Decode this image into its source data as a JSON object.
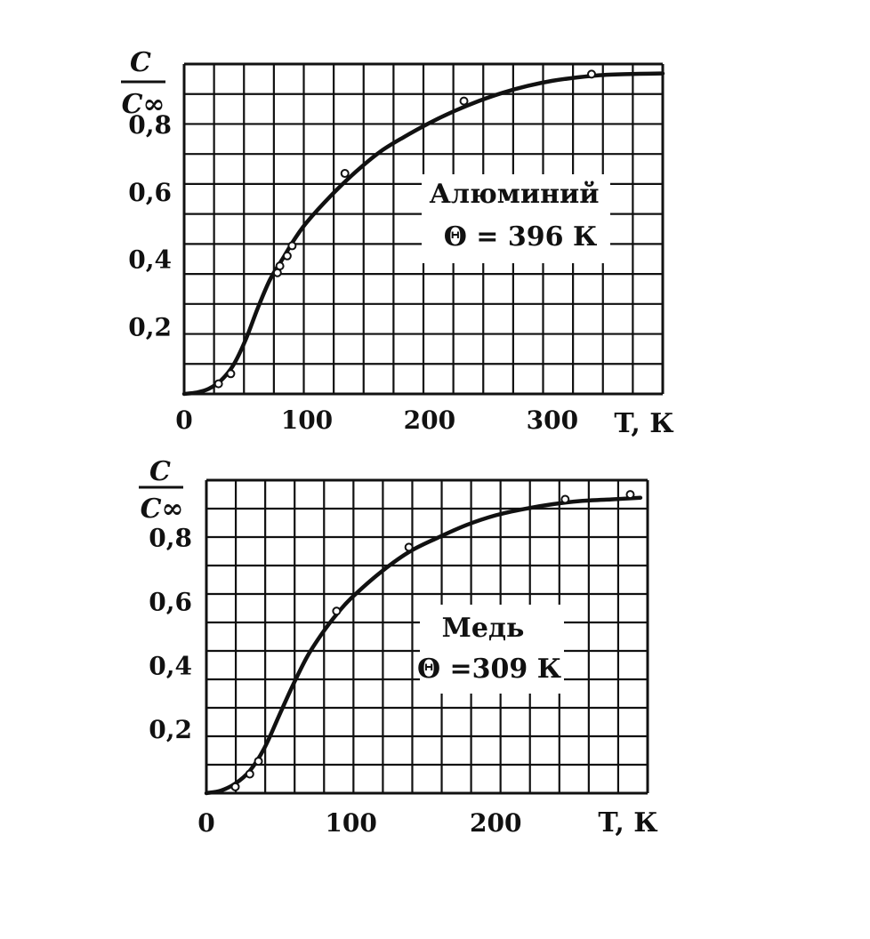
{
  "chart_data": [
    {
      "type": "line",
      "title": "",
      "xlabel": "T, К",
      "ylabel_num": "C",
      "ylabel_den": "C∞",
      "xlim": [
        0,
        390
      ],
      "ylim": [
        0,
        0.98
      ],
      "xticks": [
        0,
        100,
        200,
        300
      ],
      "xtick_labels": [
        "0",
        "100",
        "200",
        "300"
      ],
      "yticks": [
        0.2,
        0.4,
        0.6,
        0.8
      ],
      "ytick_labels": [
        "0,2",
        "0,4",
        "0,6",
        "0,8"
      ],
      "grid": true,
      "annotation": [
        "Алюминий",
        "Θ = 396 К"
      ],
      "series": [
        {
          "curve_x": [
            0,
            10,
            20,
            30,
            40,
            50,
            60,
            70,
            80,
            90,
            100,
            120,
            140,
            160,
            180,
            200,
            220,
            240,
            260,
            280,
            300,
            320,
            340,
            360,
            390
          ],
          "curve_y": [
            0.0,
            0.004,
            0.015,
            0.04,
            0.085,
            0.16,
            0.255,
            0.34,
            0.4,
            0.46,
            0.51,
            0.59,
            0.66,
            0.72,
            0.765,
            0.805,
            0.84,
            0.87,
            0.895,
            0.915,
            0.93,
            0.94,
            0.947,
            0.95,
            0.952
          ],
          "points_x": [
            28,
            38,
            76,
            78,
            84,
            88,
            131,
            228,
            332
          ],
          "points_y": [
            0.03,
            0.06,
            0.36,
            0.38,
            0.41,
            0.44,
            0.655,
            0.87,
            0.95
          ]
        }
      ]
    },
    {
      "type": "line",
      "title": "",
      "xlabel": "T, К",
      "ylabel_num": "C",
      "ylabel_den": "C∞",
      "xlim": [
        0,
        305
      ],
      "ylim": [
        0,
        0.98
      ],
      "xticks": [
        0,
        100,
        200
      ],
      "xtick_labels": [
        "0",
        "100",
        "200"
      ],
      "yticks": [
        0.2,
        0.4,
        0.6,
        0.8
      ],
      "ytick_labels": [
        "0,2",
        "0,4",
        "0,6",
        "0,8"
      ],
      "grid": true,
      "annotation": [
        "Медь",
        "Θ =309 К"
      ],
      "series": [
        {
          "curve_x": [
            0,
            10,
            20,
            30,
            40,
            50,
            60,
            70,
            80,
            90,
            100,
            120,
            140,
            160,
            180,
            200,
            220,
            240,
            260,
            280,
            300
          ],
          "curve_y": [
            0.0,
            0.008,
            0.03,
            0.07,
            0.14,
            0.24,
            0.34,
            0.43,
            0.5,
            0.56,
            0.61,
            0.69,
            0.755,
            0.8,
            0.84,
            0.87,
            0.89,
            0.905,
            0.915,
            0.92,
            0.925
          ],
          "points_x": [
            20,
            30,
            36,
            90,
            140,
            248,
            293
          ],
          "points_y": [
            0.02,
            0.06,
            0.1,
            0.57,
            0.77,
            0.92,
            0.935
          ]
        }
      ]
    }
  ],
  "colors": {
    "ink": "#111111",
    "background": "#ffffff"
  }
}
